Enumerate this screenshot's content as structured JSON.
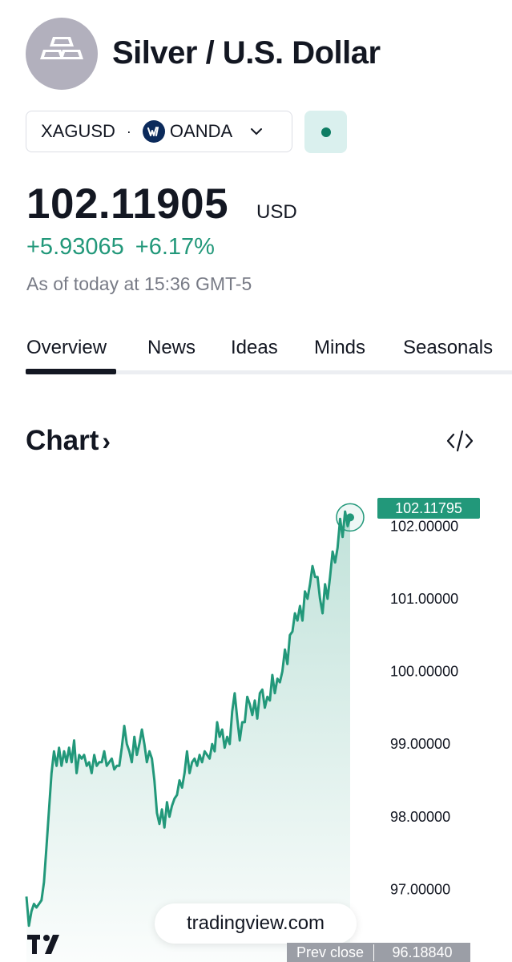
{
  "header": {
    "logo_icon": "silver-bars-icon",
    "title": "Silver / U.S. Dollar"
  },
  "symbol": {
    "ticker": "XAGUSD",
    "separator": "·",
    "broker": "OANDA",
    "broker_icon": "oanda-logo-icon",
    "dropdown_icon": "chevron-down-icon",
    "status_color": "#0e7d64"
  },
  "quote": {
    "price": "102.11905",
    "currency": "USD",
    "change": "+5.93065",
    "change_percent": "+6.17%",
    "as_of": "As of today at 15:36 GMT-5",
    "positive_color": "#22987a"
  },
  "tabs": [
    {
      "label": "Overview",
      "active": true
    },
    {
      "label": "News",
      "active": false
    },
    {
      "label": "Ideas",
      "active": false
    },
    {
      "label": "Minds",
      "active": false
    },
    {
      "label": "Seasonals",
      "active": false
    }
  ],
  "chart_section": {
    "title": "Chart",
    "arrow": "›",
    "embed_icon": "code-embed-icon"
  },
  "chart_data": {
    "type": "area",
    "y_ticks": [
      "102.00000",
      "101.00000",
      "100.00000",
      "99.00000",
      "98.00000",
      "97.00000"
    ],
    "ylim": [
      96.0,
      102.4
    ],
    "line_color": "#22987a",
    "last_price_label": "102.11795",
    "prev_close_label": "Prev close",
    "prev_close_value": "96.18840",
    "series": [
      {
        "values": [
          96.9,
          96.5,
          96.7,
          96.8,
          96.75,
          96.8,
          96.85,
          97.1,
          97.6,
          98.1,
          98.6,
          98.9,
          98.7,
          98.95,
          98.7,
          98.9,
          98.75,
          98.95,
          98.75,
          99.05,
          98.6,
          98.85,
          98.8,
          98.85,
          98.7,
          98.75,
          98.6,
          98.85,
          98.7,
          98.75,
          98.75,
          98.9,
          98.7,
          98.75,
          98.8,
          98.65,
          98.7,
          98.7,
          98.95,
          99.25,
          99.0,
          98.9,
          98.75,
          99.1,
          98.85,
          99.0,
          99.2,
          99.0,
          98.75,
          98.9,
          98.8,
          98.5,
          98.05,
          97.9,
          98.1,
          97.85,
          98.2,
          98.0,
          98.15,
          98.25,
          98.3,
          98.5,
          98.4,
          98.6,
          98.9,
          98.6,
          98.75,
          98.8,
          98.7,
          98.85,
          98.75,
          98.9,
          98.85,
          98.8,
          99.0,
          98.9,
          99.3,
          99.1,
          99.2,
          98.95,
          99.1,
          99.0,
          99.45,
          99.7,
          99.35,
          99.05,
          99.3,
          99.3,
          99.65,
          99.55,
          99.4,
          99.6,
          99.35,
          99.7,
          99.75,
          99.5,
          99.65,
          99.6,
          99.95,
          99.7,
          99.9,
          99.85,
          100.0,
          100.3,
          100.1,
          100.5,
          100.55,
          100.8,
          100.7,
          100.9,
          100.7,
          101.1,
          101.0,
          101.2,
          101.45,
          101.3,
          101.3,
          101.0,
          100.8,
          101.2,
          101.0,
          101.3,
          101.65,
          101.5,
          101.7,
          102.1,
          101.85,
          102.2,
          102.0,
          102.12
        ]
      }
    ]
  },
  "footer": {
    "watermark": "tradingview.com",
    "logo_icon": "tradingview-logo-icon"
  }
}
